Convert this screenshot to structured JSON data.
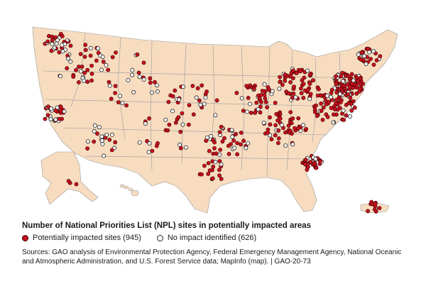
{
  "legend": {
    "title": "Number of National Priorities List (NPL) sites in potentially impacted areas",
    "impacted_label": "Potentially impacted sites (945)",
    "none_label": "No impact identified (626)"
  },
  "sources_text": "Sources: GAO analysis of Environmental Protection Agency, Federal Emergency Management Agency, National Oceanic and Atmospheric Administration, and U.S. Forest Service data; MapInfo (map).  |  GAO-20-73",
  "colors": {
    "land": "#f7dcc0",
    "state_border": "#9a9a9a",
    "impacted": "#c8101e",
    "no_impact": "#ffffff"
  },
  "regions": [
    "contiguous-us",
    "alaska",
    "hawaii",
    "puerto-rico"
  ]
}
